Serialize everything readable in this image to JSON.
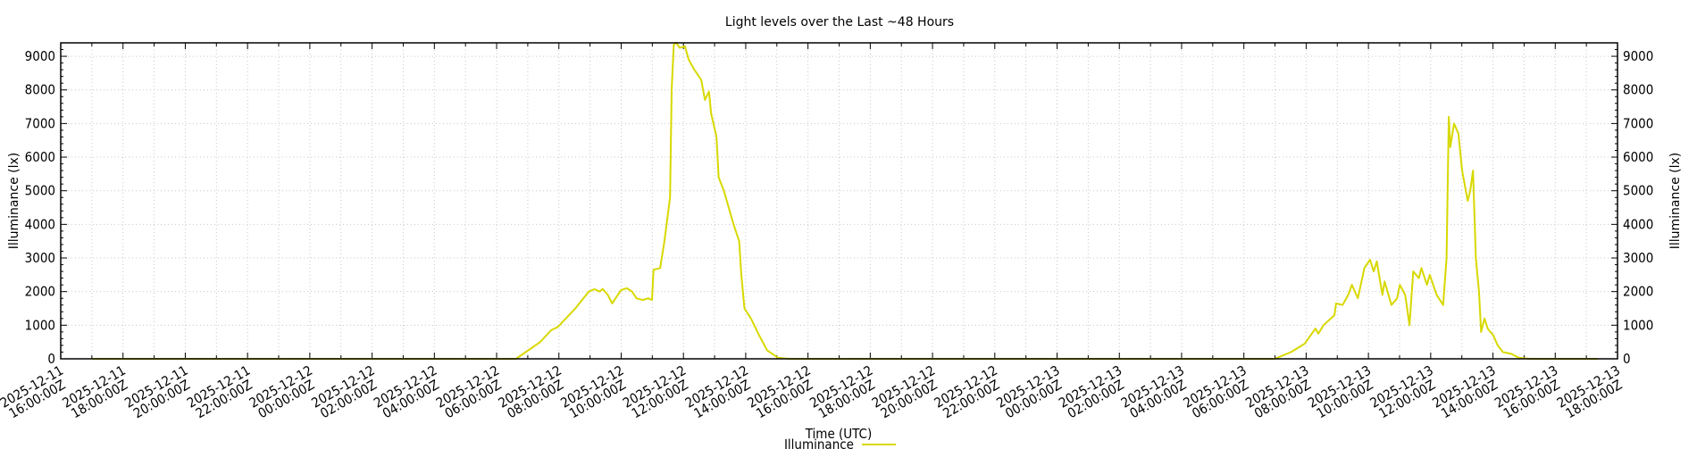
{
  "chart_data": {
    "type": "line",
    "title": "Light levels over the Last ~48 Hours",
    "xlabel": "Time (UTC)",
    "ylabel": "Illuminance (lx)",
    "ylabel_right": "Illuminance (lx)",
    "x_units": "hours since 2025-12-11 16:00:00Z",
    "xlim": [
      0,
      50
    ],
    "ylim": [
      0,
      9400
    ],
    "grid": true,
    "legend_position": "bottom-center",
    "y_ticks": [
      0,
      1000,
      2000,
      3000,
      4000,
      5000,
      6000,
      7000,
      8000,
      9000
    ],
    "y_tick_labels": [
      "0",
      "1000",
      "2000",
      "3000",
      "4000",
      "5000",
      "6000",
      "7000",
      "8000",
      "9000"
    ],
    "x_ticks": [
      0,
      2,
      4,
      6,
      8,
      10,
      12,
      14,
      16,
      18,
      20,
      22,
      24,
      26,
      28,
      30,
      32,
      34,
      36,
      38,
      40,
      42,
      44,
      46,
      48,
      50
    ],
    "x_tick_labels": [
      [
        "2025-12-11",
        "16:00:00Z"
      ],
      [
        "2025-12-11",
        "18:00:00Z"
      ],
      [
        "2025-12-11",
        "20:00:00Z"
      ],
      [
        "2025-12-11",
        "22:00:00Z"
      ],
      [
        "2025-12-12",
        "00:00:00Z"
      ],
      [
        "2025-12-12",
        "02:00:00Z"
      ],
      [
        "2025-12-12",
        "04:00:00Z"
      ],
      [
        "2025-12-12",
        "06:00:00Z"
      ],
      [
        "2025-12-12",
        "08:00:00Z"
      ],
      [
        "2025-12-12",
        "10:00:00Z"
      ],
      [
        "2025-12-12",
        "12:00:00Z"
      ],
      [
        "2025-12-12",
        "14:00:00Z"
      ],
      [
        "2025-12-12",
        "16:00:00Z"
      ],
      [
        "2025-12-12",
        "18:00:00Z"
      ],
      [
        "2025-12-12",
        "20:00:00Z"
      ],
      [
        "2025-12-12",
        "22:00:00Z"
      ],
      [
        "2025-12-13",
        "00:00:00Z"
      ],
      [
        "2025-12-13",
        "02:00:00Z"
      ],
      [
        "2025-12-13",
        "04:00:00Z"
      ],
      [
        "2025-12-13",
        "06:00:00Z"
      ],
      [
        "2025-12-13",
        "08:00:00Z"
      ],
      [
        "2025-12-13",
        "10:00:00Z"
      ],
      [
        "2025-12-13",
        "12:00:00Z"
      ],
      [
        "2025-12-13",
        "14:00:00Z"
      ],
      [
        "2025-12-13",
        "16:00:00Z"
      ],
      [
        "2025-12-13",
        "18:00:00Z"
      ]
    ],
    "series": [
      {
        "name": "Illuminance",
        "color": "#d8d800",
        "points": [
          [
            1.0,
            0
          ],
          [
            14.62,
            0
          ],
          [
            15.4,
            500
          ],
          [
            15.75,
            850
          ],
          [
            15.97,
            950
          ],
          [
            16.53,
            1500
          ],
          [
            16.96,
            2000
          ],
          [
            17.14,
            2070
          ],
          [
            17.31,
            2000
          ],
          [
            17.4,
            2080
          ],
          [
            17.57,
            1900
          ],
          [
            17.71,
            1650
          ],
          [
            18.0,
            2050
          ],
          [
            18.18,
            2100
          ],
          [
            18.35,
            2000
          ],
          [
            18.49,
            1800
          ],
          [
            18.7,
            1750
          ],
          [
            18.87,
            1800
          ],
          [
            18.99,
            1750
          ],
          [
            19.04,
            2650
          ],
          [
            19.25,
            2700
          ],
          [
            19.39,
            3500
          ],
          [
            19.57,
            4800
          ],
          [
            19.62,
            8000
          ],
          [
            19.69,
            9350
          ],
          [
            19.77,
            9400
          ],
          [
            19.88,
            9250
          ],
          [
            20.05,
            9300
          ],
          [
            20.17,
            8900
          ],
          [
            20.35,
            8600
          ],
          [
            20.57,
            8300
          ],
          [
            20.69,
            7700
          ],
          [
            20.82,
            7950
          ],
          [
            20.89,
            7300
          ],
          [
            21.06,
            6600
          ],
          [
            21.13,
            5400
          ],
          [
            21.3,
            5000
          ],
          [
            21.61,
            4000
          ],
          [
            21.79,
            3500
          ],
          [
            21.86,
            2500
          ],
          [
            21.96,
            1500
          ],
          [
            22.17,
            1200
          ],
          [
            22.43,
            700
          ],
          [
            22.69,
            250
          ],
          [
            23.04,
            30
          ],
          [
            23.39,
            0
          ],
          [
            38.99,
            0
          ],
          [
            39.51,
            200
          ],
          [
            39.95,
            450
          ],
          [
            40.3,
            900
          ],
          [
            40.39,
            750
          ],
          [
            40.56,
            1000
          ],
          [
            40.91,
            1300
          ],
          [
            40.96,
            1650
          ],
          [
            41.17,
            1600
          ],
          [
            41.35,
            1900
          ],
          [
            41.47,
            2200
          ],
          [
            41.66,
            1800
          ],
          [
            41.87,
            2700
          ],
          [
            42.05,
            2950
          ],
          [
            42.17,
            2600
          ],
          [
            42.27,
            2900
          ],
          [
            42.45,
            1900
          ],
          [
            42.52,
            2300
          ],
          [
            42.74,
            1600
          ],
          [
            42.92,
            1800
          ],
          [
            43.01,
            2200
          ],
          [
            43.18,
            1900
          ],
          [
            43.32,
            1000
          ],
          [
            43.44,
            2600
          ],
          [
            43.62,
            2400
          ],
          [
            43.7,
            2700
          ],
          [
            43.88,
            2200
          ],
          [
            43.97,
            2500
          ],
          [
            44.19,
            1900
          ],
          [
            44.4,
            1600
          ],
          [
            44.51,
            3000
          ],
          [
            44.58,
            7200
          ],
          [
            44.63,
            6300
          ],
          [
            44.75,
            7000
          ],
          [
            44.89,
            6700
          ],
          [
            45.01,
            5600
          ],
          [
            45.19,
            4700
          ],
          [
            45.27,
            5000
          ],
          [
            45.36,
            5600
          ],
          [
            45.45,
            3000
          ],
          [
            45.55,
            2000
          ],
          [
            45.62,
            800
          ],
          [
            45.73,
            1200
          ],
          [
            45.83,
            900
          ],
          [
            46.01,
            700
          ],
          [
            46.15,
            400
          ],
          [
            46.32,
            200
          ],
          [
            46.58,
            150
          ],
          [
            46.84,
            30
          ],
          [
            47.19,
            0
          ],
          [
            49.38,
            0
          ]
        ]
      }
    ]
  }
}
